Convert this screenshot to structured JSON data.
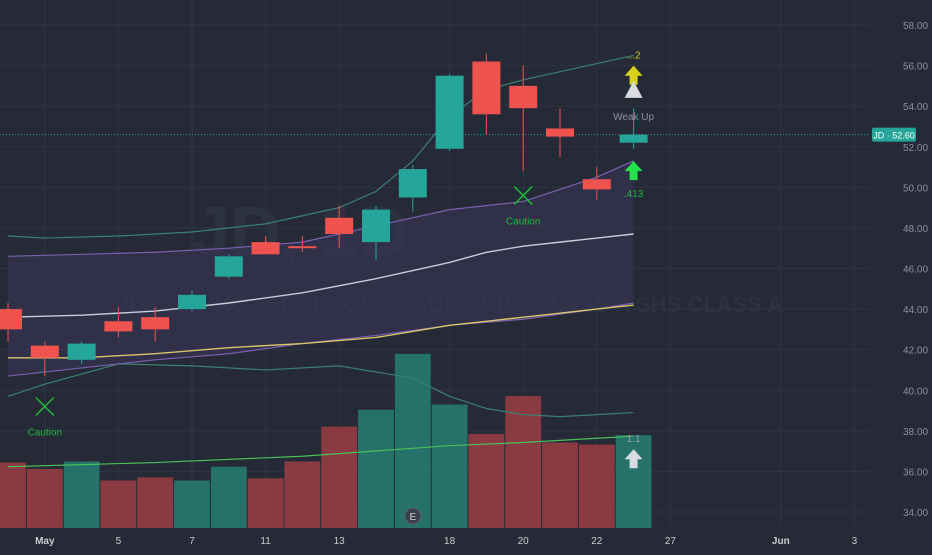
{
  "chart_data": {
    "type": "candlestick",
    "symbol": "JD",
    "last_price_label": "JD · 52.60",
    "last_price": 52.6,
    "watermark": "JD, 1D",
    "watermark_subtitle": "JD.COM INC - SPONSORED ADR REP 2 CLASS A SHS CLASS A",
    "ylim": [
      33.5,
      59
    ],
    "y_ticks": [
      "58.00",
      "56.00",
      "54.00",
      "52.00",
      "50.00",
      "48.00",
      "46.00",
      "44.00",
      "42.00",
      "40.00",
      "38.00",
      "36.00",
      "34.00"
    ],
    "x_ticks": [
      {
        "label": "May",
        "bar": 1
      },
      {
        "label": "5",
        "bar": 3
      },
      {
        "label": "7",
        "bar": 5
      },
      {
        "label": "11",
        "bar": 7
      },
      {
        "label": "13",
        "bar": 9
      },
      {
        "label": "18",
        "bar": 12
      },
      {
        "label": "20",
        "bar": 14
      },
      {
        "label": "22",
        "bar": 16
      },
      {
        "label": "27",
        "bar": 18
      },
      {
        "label": "Jun",
        "bar": 21
      },
      {
        "label": "3",
        "bar": 23
      }
    ],
    "candles": [
      {
        "o": 44.0,
        "h": 44.3,
        "l": 42.4,
        "c": 43.0
      },
      {
        "o": 42.2,
        "h": 42.4,
        "l": 40.7,
        "c": 41.6
      },
      {
        "o": 41.5,
        "h": 42.4,
        "l": 41.3,
        "c": 42.3
      },
      {
        "o": 43.4,
        "h": 44.1,
        "l": 42.6,
        "c": 42.9
      },
      {
        "o": 43.6,
        "h": 44.1,
        "l": 42.4,
        "c": 43.0
      },
      {
        "o": 44.0,
        "h": 44.9,
        "l": 43.9,
        "c": 44.7
      },
      {
        "o": 45.6,
        "h": 46.7,
        "l": 45.5,
        "c": 46.6
      },
      {
        "o": 47.3,
        "h": 47.6,
        "l": 46.8,
        "c": 46.7
      },
      {
        "o": 47.1,
        "h": 47.6,
        "l": 46.8,
        "c": 47.0
      },
      {
        "o": 48.5,
        "h": 49.1,
        "l": 47.0,
        "c": 47.7
      },
      {
        "o": 47.3,
        "h": 49.1,
        "l": 46.4,
        "c": 48.9
      },
      {
        "o": 49.5,
        "h": 51.1,
        "l": 48.8,
        "c": 50.9
      },
      {
        "o": 51.9,
        "h": 55.6,
        "l": 51.8,
        "c": 55.5
      },
      {
        "o": 56.2,
        "h": 56.6,
        "l": 52.6,
        "c": 53.6
      },
      {
        "o": 55.0,
        "h": 56.0,
        "l": 50.8,
        "c": 53.9
      },
      {
        "o": 52.9,
        "h": 53.9,
        "l": 51.5,
        "c": 52.5
      },
      {
        "o": 50.4,
        "h": 51.0,
        "l": 49.4,
        "c": 49.9
      },
      {
        "o": 52.2,
        "h": 53.9,
        "l": 51.9,
        "c": 52.6
      }
    ],
    "volume": [
      {
        "v": 0.62,
        "up": false
      },
      {
        "v": 0.56,
        "up": false
      },
      {
        "v": 0.63,
        "up": true
      },
      {
        "v": 0.45,
        "up": false
      },
      {
        "v": 0.48,
        "up": false
      },
      {
        "v": 0.45,
        "up": true
      },
      {
        "v": 0.58,
        "up": true
      },
      {
        "v": 0.47,
        "up": false
      },
      {
        "v": 0.63,
        "up": false
      },
      {
        "v": 0.96,
        "up": false
      },
      {
        "v": 1.12,
        "up": true
      },
      {
        "v": 1.65,
        "up": true
      },
      {
        "v": 1.17,
        "up": true
      },
      {
        "v": 0.89,
        "up": false
      },
      {
        "v": 1.25,
        "up": false
      },
      {
        "v": 0.81,
        "up": false
      },
      {
        "v": 0.79,
        "up": false
      },
      {
        "v": 0.88,
        "up": true
      }
    ],
    "volume_max": 1.8,
    "series": [
      {
        "role": "upper_band",
        "color": "#3c7f74",
        "points": [
          [
            0,
            47.6
          ],
          [
            1,
            47.5
          ],
          [
            3,
            47.6
          ],
          [
            5,
            47.8
          ],
          [
            7,
            48.2
          ],
          [
            9,
            49.0
          ],
          [
            10,
            49.8
          ],
          [
            11,
            51.3
          ],
          [
            12,
            53.5
          ],
          [
            13,
            54.8
          ],
          [
            14,
            55.3
          ],
          [
            15,
            55.7
          ],
          [
            16,
            56.1
          ],
          [
            17,
            56.5
          ]
        ]
      },
      {
        "role": "lower_band",
        "color": "#3c7f74",
        "points": [
          [
            0,
            39.7
          ],
          [
            1,
            40.3
          ],
          [
            3,
            41.3
          ],
          [
            5,
            41.2
          ],
          [
            7,
            41.0
          ],
          [
            9,
            41.2
          ],
          [
            10,
            40.9
          ],
          [
            11,
            40.6
          ],
          [
            12,
            39.7
          ],
          [
            13,
            39.1
          ],
          [
            14,
            38.8
          ],
          [
            15,
            38.7
          ],
          [
            16,
            38.8
          ],
          [
            17,
            38.9
          ]
        ]
      },
      {
        "role": "cloud_top",
        "color": "#7b5fb0",
        "points": [
          [
            0,
            46.6
          ],
          [
            2,
            46.7
          ],
          [
            4,
            46.8
          ],
          [
            6,
            47.0
          ],
          [
            8,
            47.3
          ],
          [
            10,
            48.1
          ],
          [
            12,
            48.9
          ],
          [
            14,
            49.3
          ],
          [
            16,
            50.5
          ],
          [
            17,
            51.3
          ]
        ]
      },
      {
        "role": "cloud_bottom",
        "color": "#7b5fb0",
        "points": [
          [
            0,
            40.7
          ],
          [
            2,
            41.1
          ],
          [
            4,
            41.5
          ],
          [
            6,
            41.8
          ],
          [
            8,
            42.3
          ],
          [
            10,
            42.7
          ],
          [
            12,
            43.2
          ],
          [
            14,
            43.5
          ],
          [
            16,
            44.0
          ],
          [
            17,
            44.3
          ]
        ]
      },
      {
        "role": "ma_white",
        "color": "#c8ccd6",
        "points": [
          [
            0,
            43.6
          ],
          [
            2,
            43.7
          ],
          [
            4,
            43.9
          ],
          [
            6,
            44.3
          ],
          [
            8,
            44.8
          ],
          [
            10,
            45.5
          ],
          [
            11,
            45.9
          ],
          [
            12,
            46.3
          ],
          [
            13,
            46.8
          ],
          [
            14,
            47.1
          ],
          [
            15,
            47.3
          ],
          [
            16,
            47.5
          ],
          [
            17,
            47.7
          ]
        ]
      },
      {
        "role": "ma_yellow",
        "color": "#d8c46a",
        "points": [
          [
            0,
            41.6
          ],
          [
            2,
            41.6
          ],
          [
            4,
            41.8
          ],
          [
            6,
            42.1
          ],
          [
            8,
            42.3
          ],
          [
            10,
            42.6
          ],
          [
            11,
            42.9
          ],
          [
            12,
            43.2
          ],
          [
            13,
            43.4
          ],
          [
            14,
            43.6
          ],
          [
            15,
            43.8
          ],
          [
            16,
            44.0
          ],
          [
            17,
            44.2
          ]
        ]
      },
      {
        "role": "volume_ma",
        "color": "#4cbf5a",
        "points": [
          [
            0,
            0.58
          ],
          [
            4,
            0.62
          ],
          [
            8,
            0.68
          ],
          [
            12,
            0.78
          ],
          [
            14,
            0.81
          ],
          [
            16,
            0.85
          ],
          [
            17,
            0.87
          ]
        ]
      }
    ],
    "annotations": [
      {
        "kind": "x",
        "bar": 1,
        "price": 39.2,
        "label": "Caution"
      },
      {
        "kind": "x",
        "bar": 14,
        "price": 49.6,
        "label": "Caution"
      },
      {
        "kind": "arrow-up",
        "bar": 17,
        "price": 55.5,
        "color": "#d8d21a",
        "label": "...2"
      },
      {
        "kind": "triangle-up",
        "bar": 17,
        "price": 54.8,
        "color": "#d9dbe0",
        "label": "Weak Up"
      },
      {
        "kind": "arrow-up",
        "bar": 17,
        "price": 50.8,
        "color": "#22e24a",
        "label": ".413"
      },
      {
        "kind": "arrow-up",
        "bar": 17,
        "price": 36.6,
        "color": "#d9dbe0",
        "label": "1.1"
      }
    ],
    "earnings_marker": {
      "bar": 11,
      "label": "E"
    }
  }
}
